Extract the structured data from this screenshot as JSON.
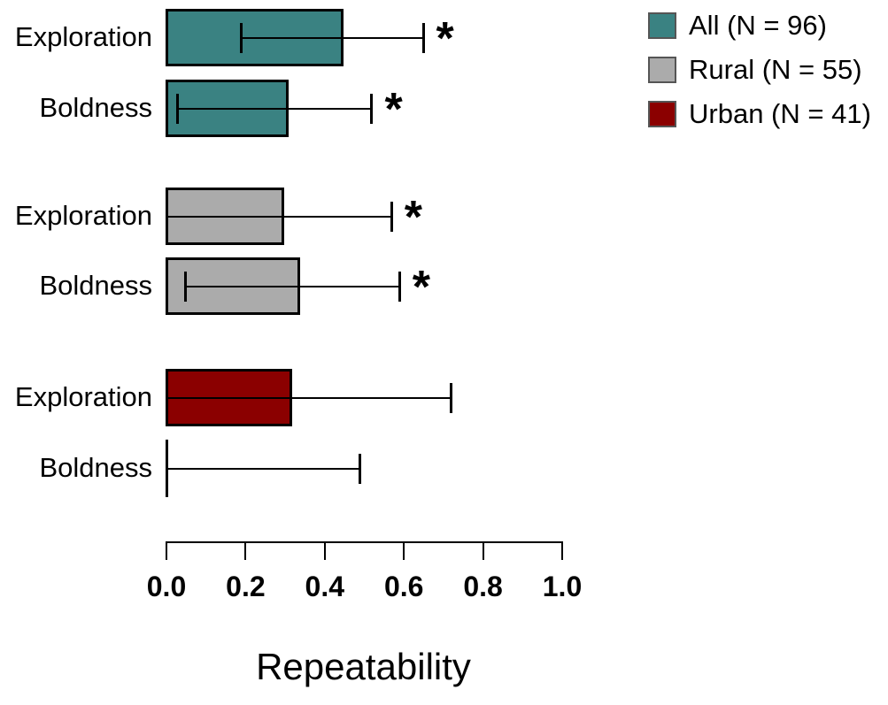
{
  "chart_data": {
    "type": "bar",
    "orientation": "horizontal",
    "title": "",
    "xlabel": "Repeatability",
    "ylabel": "",
    "xlim": [
      0.0,
      1.0
    ],
    "x_ticks": [
      "0.0",
      "0.2",
      "0.4",
      "0.6",
      "0.8",
      "1.0"
    ],
    "x_tick_values": [
      0.0,
      0.2,
      0.4,
      0.6,
      0.8,
      1.0
    ],
    "grid": false,
    "legend_position": "top-right",
    "significance_marker": "*",
    "groups": [
      {
        "name": "All",
        "legend_label": "All (N = 96)",
        "color": "#3A8282",
        "bars": [
          {
            "label": "Exploration",
            "value": 0.45,
            "ci_low": 0.19,
            "ci_high": 0.65,
            "significant": true
          },
          {
            "label": "Boldness",
            "value": 0.31,
            "ci_low": 0.03,
            "ci_high": 0.52,
            "significant": true
          }
        ]
      },
      {
        "name": "Rural",
        "legend_label": "Rural (N = 55)",
        "color": "#ABABAB",
        "bars": [
          {
            "label": "Exploration",
            "value": 0.3,
            "ci_low": 0.0,
            "ci_high": 0.57,
            "significant": true
          },
          {
            "label": "Boldness",
            "value": 0.34,
            "ci_low": 0.05,
            "ci_high": 0.59,
            "significant": true
          }
        ]
      },
      {
        "name": "Urban",
        "legend_label": "Urban (N = 41)",
        "color": "#8B0000",
        "bars": [
          {
            "label": "Exploration",
            "value": 0.32,
            "ci_low": 0.0,
            "ci_high": 0.72,
            "significant": false
          },
          {
            "label": "Boldness",
            "value": 0.0,
            "ci_low": 0.0,
            "ci_high": 0.49,
            "significant": false
          }
        ]
      }
    ]
  }
}
